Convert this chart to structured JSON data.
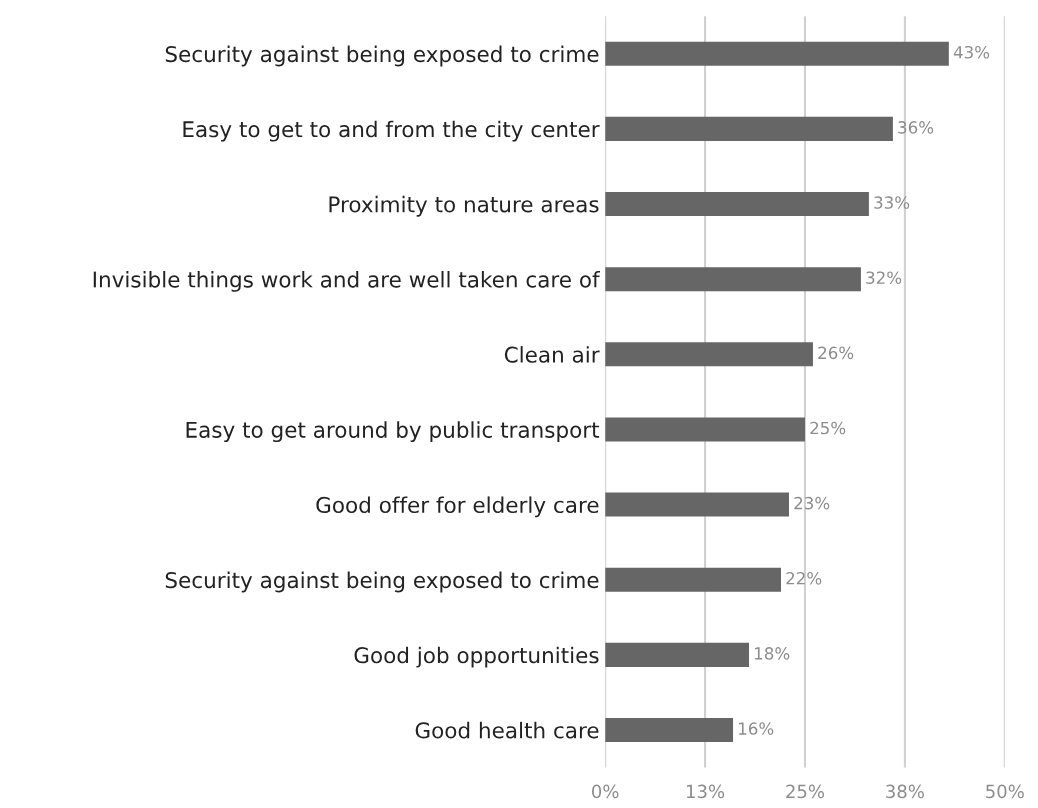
{
  "chart_data": {
    "type": "bar",
    "orientation": "horizontal",
    "categories": [
      "Security against being exposed to crime",
      "Easy to get to and from the city center",
      "Proximity to nature areas",
      "Invisible things work and are well taken care of",
      "Clean air",
      "Easy to get around by public transport",
      "Good offer for elderly care",
      "Security against being exposed to crime",
      "Good job opportunities",
      "Good health care"
    ],
    "values": [
      43,
      36,
      33,
      32,
      26,
      25,
      23,
      22,
      18,
      16
    ],
    "value_labels": [
      "43%",
      "36%",
      "33%",
      "32%",
      "26%",
      "25%",
      "23%",
      "22%",
      "18%",
      "16%"
    ],
    "color": "#666666",
    "xlim": [
      0,
      50
    ],
    "xticks": [
      {
        "value": 0,
        "label": "0%"
      },
      {
        "value": 12.5,
        "label": "13%"
      },
      {
        "value": 25,
        "label": "25%"
      },
      {
        "value": 37.5,
        "label": "38%"
      },
      {
        "value": 50,
        "label": "50%"
      }
    ],
    "grid": "x",
    "legend": false
  }
}
